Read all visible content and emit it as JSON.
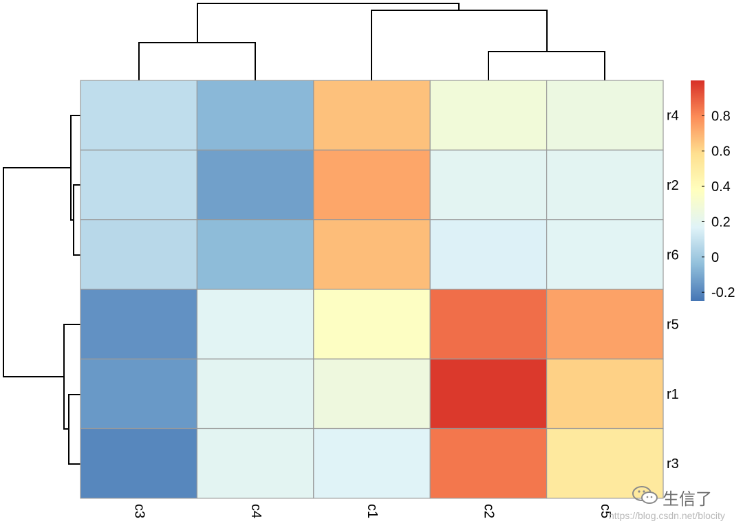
{
  "chart_data": {
    "type": "heatmap",
    "columns": [
      "c3",
      "c4",
      "c1",
      "c2",
      "c5"
    ],
    "rows": [
      "r4",
      "r2",
      "r6",
      "r5",
      "r1",
      "r3"
    ],
    "values": [
      [
        0.08,
        -0.06,
        0.66,
        0.28,
        0.25
      ],
      [
        0.08,
        -0.13,
        0.73,
        0.19,
        0.19
      ],
      [
        0.06,
        -0.05,
        0.67,
        0.16,
        0.18
      ],
      [
        -0.17,
        0.18,
        0.36,
        0.86,
        0.74
      ],
      [
        -0.15,
        0.19,
        0.26,
        0.98,
        0.62
      ],
      [
        -0.2,
        0.19,
        0.17,
        0.84,
        0.52
      ]
    ],
    "color_scale": {
      "min": -0.25,
      "max": 1.0,
      "stops": [
        "#4575B4",
        "#91BFDB",
        "#E0F3F8",
        "#FFFFBF",
        "#FEE090",
        "#FC8D59",
        "#D73027"
      ]
    },
    "legend": {
      "ticks": [
        -0.2,
        0,
        0.2,
        0.4,
        0.6,
        0.8
      ],
      "tick_labels": [
        "-0.2",
        "0",
        "0.2",
        "0.4",
        "0.6",
        "0.8"
      ],
      "placement": "right"
    },
    "column_dendrogram": true,
    "row_dendrogram": true,
    "cell_border_color": "#999999"
  },
  "watermark": {
    "name": "生信了",
    "url": "https://blog.csdn.net/blocity"
  }
}
